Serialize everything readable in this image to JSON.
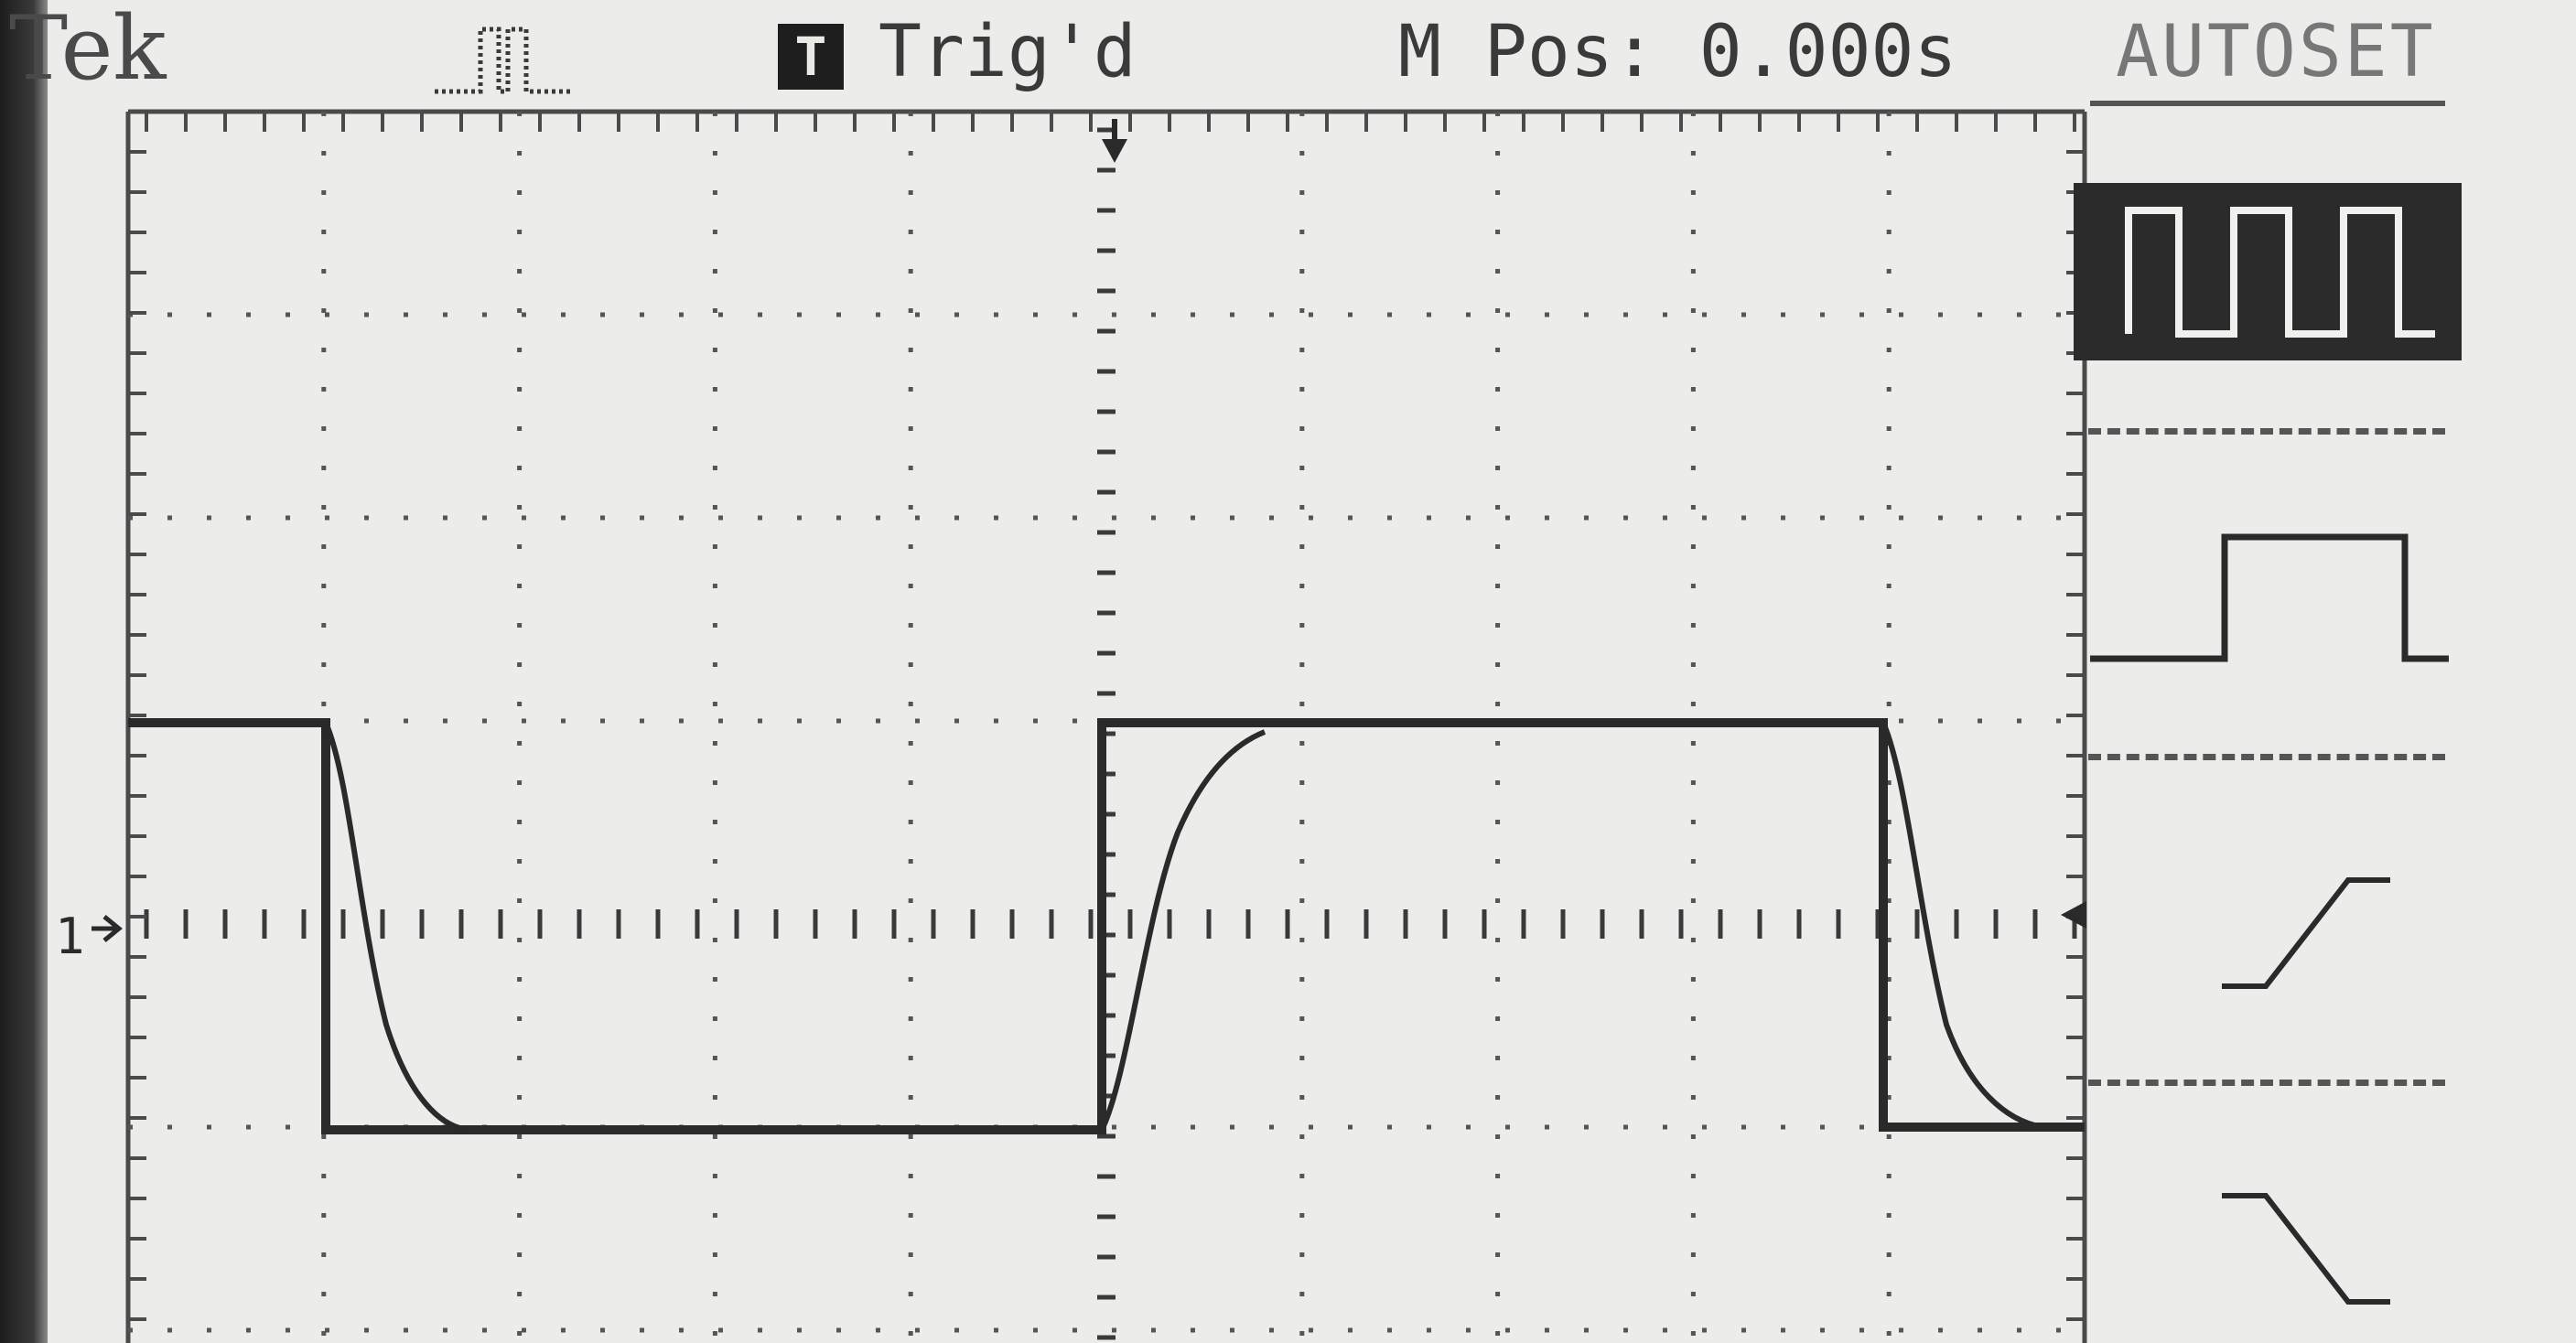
{
  "brand": "Tek",
  "acquisition_icon": "pulse-acquire-icon",
  "trigger": {
    "badge": "T",
    "status": "Trig'd"
  },
  "m_pos": "M Pos: 0.000s",
  "menu": {
    "title": "AUTOSET",
    "items": [
      {
        "icon": "multi-cycle-square-wave-icon",
        "selected": true
      },
      {
        "icon": "single-cycle-pulse-icon",
        "selected": false
      },
      {
        "icon": "rising-edge-icon",
        "selected": false
      },
      {
        "icon": "falling-edge-icon",
        "selected": false
      }
    ]
  },
  "channel_marker": "1",
  "colors": {
    "screen": "#ececea",
    "trace": "#2a2a2a",
    "selected_menu_bg": "#2b2b2b"
  }
}
